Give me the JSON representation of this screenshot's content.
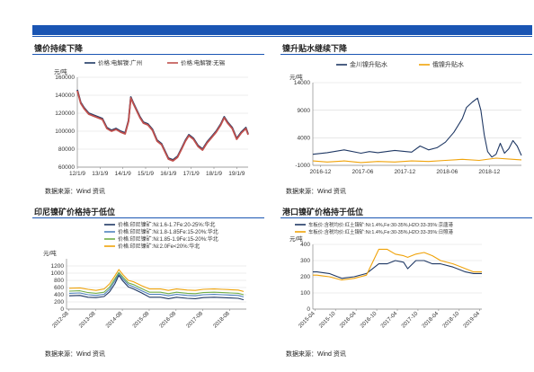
{
  "source_label": "数据来源：Wind 资讯",
  "panels": [
    {
      "title": "镍价持续下降"
    },
    {
      "title": "镍升贴水继续下降"
    },
    {
      "title": "印尼镍矿价格持于低位"
    },
    {
      "title": "港口镍矿价格持于低位"
    }
  ],
  "chart_data": [
    {
      "type": "line",
      "title": "镍价持续下降",
      "yunit": "元/吨",
      "ylim": [
        60000,
        160000
      ],
      "yticks": [
        "60000",
        "80000",
        "100000",
        "120000",
        "140000",
        "160000"
      ],
      "xticks": [
        "12/1/9",
        "13/1/9",
        "14/1/9",
        "15/1/9",
        "16/1/9",
        "17/1/9",
        "18/1/9",
        "19/1/9"
      ],
      "xlim": [
        2012.0,
        2019.5
      ],
      "legend_position": "top",
      "colors": [
        "#1f3864",
        "#c0504d"
      ],
      "series": [
        {
          "name": "价格:电解镍:广州",
          "x": [
            2012.0,
            2012.15,
            2012.3,
            2012.5,
            2012.7,
            2012.9,
            2013.1,
            2013.3,
            2013.5,
            2013.7,
            2013.9,
            2014.1,
            2014.25,
            2014.35,
            2014.45,
            2014.6,
            2014.75,
            2014.9,
            2015.1,
            2015.3,
            2015.5,
            2015.7,
            2015.85,
            2016.0,
            2016.2,
            2016.4,
            2016.6,
            2016.75,
            2016.9,
            2017.1,
            2017.3,
            2017.5,
            2017.7,
            2017.9,
            2018.1,
            2018.3,
            2018.45,
            2018.6,
            2018.8,
            2019.0,
            2019.2,
            2019.4,
            2019.5
          ],
          "y": [
            146000,
            132000,
            126000,
            120000,
            118000,
            116000,
            114000,
            104000,
            101000,
            103000,
            100000,
            98000,
            112000,
            138000,
            132000,
            124000,
            116000,
            110000,
            108000,
            102000,
            90000,
            86000,
            78000,
            70000,
            68000,
            72000,
            82000,
            90000,
            96000,
            92000,
            84000,
            80000,
            88000,
            94000,
            100000,
            108000,
            116000,
            110000,
            104000,
            92000,
            99000,
            104000,
            97000
          ]
        },
        {
          "name": "价格:电解镍:无锡",
          "x": [
            2012.0,
            2012.15,
            2012.3,
            2012.5,
            2012.7,
            2012.9,
            2013.1,
            2013.3,
            2013.5,
            2013.7,
            2013.9,
            2014.1,
            2014.25,
            2014.35,
            2014.45,
            2014.6,
            2014.75,
            2014.9,
            2015.1,
            2015.3,
            2015.5,
            2015.7,
            2015.85,
            2016.0,
            2016.2,
            2016.4,
            2016.6,
            2016.75,
            2016.9,
            2017.1,
            2017.3,
            2017.5,
            2017.7,
            2017.9,
            2018.1,
            2018.3,
            2018.45,
            2018.6,
            2018.8,
            2019.0,
            2019.2,
            2019.4,
            2019.5
          ],
          "y": [
            145000,
            131000,
            125000,
            119000,
            117000,
            115000,
            113000,
            103000,
            100000,
            102000,
            99000,
            97000,
            111000,
            137000,
            131000,
            123000,
            115000,
            109000,
            107000,
            101000,
            89000,
            85000,
            77000,
            69000,
            67000,
            71000,
            81000,
            89000,
            95000,
            91000,
            83000,
            79000,
            87000,
            93000,
            99000,
            107000,
            115000,
            109000,
            103000,
            91000,
            98000,
            103000,
            96000
          ]
        }
      ]
    },
    {
      "type": "line",
      "title": "镍升贴水继续下降",
      "yunit": "元/吨",
      "ylim": [
        -1000,
        14000
      ],
      "yticks": [
        "-1000",
        "4000",
        "9000",
        "14000"
      ],
      "xticks": [
        "2016-12",
        "2017-06",
        "2017-12",
        "2018-06",
        "2018-12"
      ],
      "xlim": [
        2016.83,
        2019.3
      ],
      "legend_position": "top",
      "colors": [
        "#1f3864",
        "#f0a30a"
      ],
      "series": [
        {
          "name": "金川镍升贴水",
          "x": [
            2016.83,
            2017.0,
            2017.2,
            2017.4,
            2017.5,
            2017.6,
            2017.8,
            2018.0,
            2018.1,
            2018.2,
            2018.3,
            2018.4,
            2018.5,
            2018.6,
            2018.65,
            2018.72,
            2018.78,
            2018.82,
            2018.86,
            2018.9,
            2018.95,
            2019.0,
            2019.05,
            2019.1,
            2019.15,
            2019.2,
            2019.25,
            2019.3
          ],
          "y": [
            1000,
            1300,
            1800,
            1200,
            1500,
            1300,
            1700,
            1400,
            2500,
            1800,
            2200,
            3200,
            5000,
            7500,
            9500,
            10500,
            11200,
            9000,
            4500,
            1500,
            500,
            1000,
            3000,
            1200,
            2000,
            3500,
            2500,
            800
          ]
        },
        {
          "name": "俄镍升贴水",
          "x": [
            2016.83,
            2017.0,
            2017.2,
            2017.4,
            2017.6,
            2017.8,
            2018.0,
            2018.2,
            2018.4,
            2018.6,
            2018.8,
            2019.0,
            2019.2,
            2019.3
          ],
          "y": [
            -200,
            -400,
            -200,
            -500,
            -300,
            -400,
            -200,
            -300,
            -100,
            100,
            -100,
            300,
            100,
            0
          ]
        }
      ]
    },
    {
      "type": "line",
      "title": "印尼镍矿价格持于低位",
      "yunit": "元/吨",
      "ylim": [
        0,
        1400
      ],
      "yticks": [
        "0",
        "200",
        "400",
        "600",
        "800",
        "1000",
        "1200"
      ],
      "xticks": [
        "2012-08",
        "2013-08",
        "2014-08",
        "2015-08",
        "2016-08",
        "2017-08",
        "2018-08"
      ],
      "xlim": [
        2012.5,
        2019.2
      ],
      "legend_position": "top",
      "colors": [
        "#1f3864",
        "#4f81bd",
        "#70ad47",
        "#f0a30a"
      ],
      "series": [
        {
          "name": "价格:印尼镍矿:Ni:1.6-1.7Fe:20-25%:华北",
          "x": [
            2012.6,
            2013.0,
            2013.3,
            2013.6,
            2013.9,
            2014.1,
            2014.3,
            2014.45,
            2014.6,
            2014.8,
            2015.0,
            2015.3,
            2015.6,
            2016.0,
            2016.3,
            2016.6,
            2017.0,
            2017.3,
            2017.6,
            2018.0,
            2018.3,
            2018.6,
            2018.9,
            2019.1
          ],
          "y": [
            370,
            380,
            330,
            320,
            350,
            480,
            700,
            940,
            780,
            620,
            560,
            450,
            330,
            330,
            290,
            330,
            300,
            290,
            320,
            330,
            320,
            310,
            300,
            260
          ]
        },
        {
          "name": "价格:印尼镍矿:Ni:1.8-1.85Fe:15-20%:华北",
          "x": [
            2012.6,
            2013.0,
            2013.3,
            2013.6,
            2013.9,
            2014.1,
            2014.3,
            2014.45,
            2014.6,
            2014.8,
            2015.0,
            2015.3,
            2015.6,
            2016.0,
            2016.3,
            2016.6,
            2017.0,
            2017.3,
            2017.6,
            2018.0,
            2018.3,
            2018.6,
            2018.9,
            2019.1
          ],
          "y": [
            440,
            450,
            400,
            380,
            410,
            550,
            780,
            990,
            840,
            680,
            620,
            510,
            410,
            410,
            370,
            410,
            380,
            370,
            400,
            410,
            400,
            390,
            380,
            340
          ]
        },
        {
          "name": "价格:印尼镍矿:Ni:1.85-1.9Fe:15-20%:华北",
          "x": [
            2012.6,
            2013.0,
            2013.3,
            2013.6,
            2013.9,
            2014.1,
            2014.3,
            2014.45,
            2014.6,
            2014.8,
            2015.0,
            2015.3,
            2015.6,
            2016.0,
            2016.3,
            2016.6,
            2017.0,
            2017.3,
            2017.6,
            2018.0,
            2018.3,
            2018.6,
            2018.9,
            2019.1
          ],
          "y": [
            500,
            510,
            460,
            440,
            470,
            610,
            840,
            1020,
            890,
            730,
            680,
            570,
            470,
            470,
            430,
            470,
            440,
            430,
            460,
            470,
            460,
            450,
            440,
            400
          ]
        },
        {
          "name": "价格:印尼镍矿:Ni:2.0Fe<20%:华北",
          "x": [
            2012.6,
            2013.0,
            2013.3,
            2013.6,
            2013.9,
            2014.1,
            2014.3,
            2014.45,
            2014.6,
            2014.8,
            2015.0,
            2015.3,
            2015.6,
            2016.0,
            2016.3,
            2016.6,
            2017.0,
            2017.3,
            2017.6,
            2018.0,
            2018.3,
            2018.6,
            2018.9,
            2019.1
          ],
          "y": [
            580,
            590,
            550,
            520,
            560,
            700,
            920,
            1100,
            960,
            800,
            760,
            650,
            560,
            560,
            520,
            560,
            530,
            520,
            550,
            560,
            550,
            540,
            530,
            490
          ]
        }
      ]
    },
    {
      "type": "line",
      "title": "港口镍矿价格持于低位",
      "yunit": "元/吨",
      "ylim": [
        0,
        400
      ],
      "yticks": [
        "0",
        "100",
        "200",
        "300",
        "400"
      ],
      "xticks": [
        "2015-04",
        "2015-10",
        "2016-04",
        "2016-10",
        "2017-04",
        "2017-10",
        "2018-04",
        "2018-10",
        "2019-04"
      ],
      "xlim": [
        2015.2,
        2019.3
      ],
      "legend_position": "top",
      "colors": [
        "#1f3864",
        "#f0a30a"
      ],
      "series": [
        {
          "name": "车板价:含税均价:红土镍矿:Ni:1.4%,Fe:30-35%,H2O:33-35%:京唐港",
          "x": [
            2015.2,
            2015.3,
            2015.6,
            2015.9,
            2016.2,
            2016.5,
            2016.8,
            2017.0,
            2017.2,
            2017.4,
            2017.5,
            2017.7,
            2017.9,
            2018.1,
            2018.3,
            2018.6,
            2018.9,
            2019.1,
            2019.3
          ],
          "y": [
            230,
            230,
            220,
            190,
            200,
            220,
            280,
            280,
            300,
            290,
            250,
            300,
            300,
            280,
            280,
            260,
            230,
            220,
            220
          ]
        },
        {
          "name": "车板价:含税均价:红土镍矿:Ni:1.4%,Fe:30-35%,H2O:33-35%:日照港",
          "x": [
            2015.2,
            2015.3,
            2015.6,
            2015.9,
            2016.2,
            2016.5,
            2016.8,
            2017.0,
            2017.2,
            2017.4,
            2017.5,
            2017.7,
            2017.9,
            2018.1,
            2018.3,
            2018.6,
            2018.9,
            2019.1,
            2019.3
          ],
          "y": [
            210,
            210,
            200,
            180,
            190,
            210,
            370,
            370,
            340,
            330,
            320,
            340,
            350,
            330,
            300,
            280,
            250,
            230,
            230
          ]
        }
      ]
    }
  ]
}
